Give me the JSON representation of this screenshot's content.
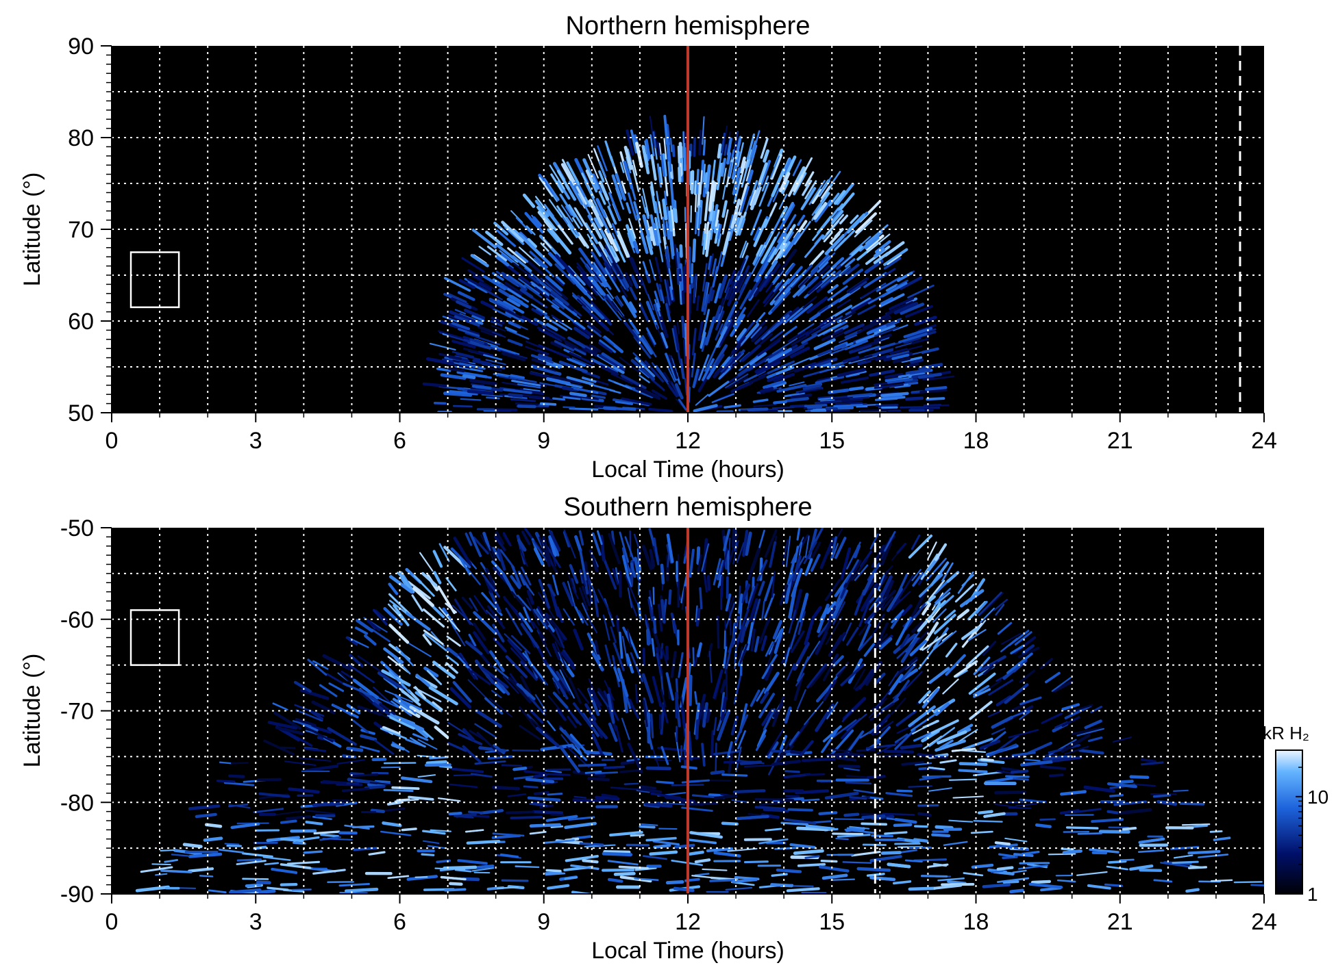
{
  "chart_data": [
    {
      "type": "heatmap",
      "title": "Northern hemisphere",
      "xlabel": "Local Time (hours)",
      "ylabel": "Latitude (°)",
      "xlim": [
        0,
        24
      ],
      "ylim": [
        50,
        90
      ],
      "xticks": [
        0,
        3,
        6,
        9,
        12,
        15,
        18,
        21,
        24
      ],
      "yticks": [
        50,
        60,
        70,
        80,
        90
      ],
      "grid": true,
      "background": "#000000",
      "emission": {
        "lt_range": [
          7.0,
          17.2
        ],
        "center_lt": 12,
        "top_latitude": 79.5,
        "bright_band_latitudes": [
          66,
          78
        ]
      },
      "reference_lines": [
        {
          "lt": 12.0,
          "color": "#c0392b",
          "style": "solid"
        },
        {
          "lt": 23.5,
          "color": "#ffffff",
          "style": "dashed"
        }
      ],
      "box": {
        "lt": [
          0.4,
          1.4
        ],
        "lat": [
          61.5,
          67.5
        ],
        "color": "#ffffff"
      }
    },
    {
      "type": "heatmap",
      "title": "Southern hemisphere",
      "xlabel": "Local Time (hours)",
      "ylabel": "Latitude (°)",
      "xlim": [
        0,
        24
      ],
      "ylim": [
        -90,
        -50
      ],
      "xticks": [
        0,
        3,
        6,
        9,
        12,
        15,
        18,
        21,
        24
      ],
      "yticks": [
        -90,
        -80,
        -70,
        -60,
        -50
      ],
      "grid": true,
      "background": "#000000",
      "emission": {
        "lt_range": [
          0.1,
          23.9
        ],
        "center_lt": 12,
        "edge_latitude": -50,
        "bright_band_lt": [
          6.3,
          17.7
        ]
      },
      "reference_lines": [
        {
          "lt": 12.0,
          "color": "#c0392b",
          "style": "solid"
        },
        {
          "lt": 15.9,
          "color": "#ffffff",
          "style": "dashed"
        }
      ],
      "box": {
        "lt": [
          0.4,
          1.4
        ],
        "lat": [
          -65,
          -59
        ],
        "color": "#ffffff"
      }
    }
  ],
  "colorbar": {
    "label": "kR H₂",
    "ticks": [
      1,
      10
    ],
    "range": [
      1,
      30
    ],
    "scale": "log",
    "colors": [
      "#000005",
      "#00106a",
      "#1e64dc",
      "#64b4ff",
      "#ebf5ff"
    ]
  }
}
